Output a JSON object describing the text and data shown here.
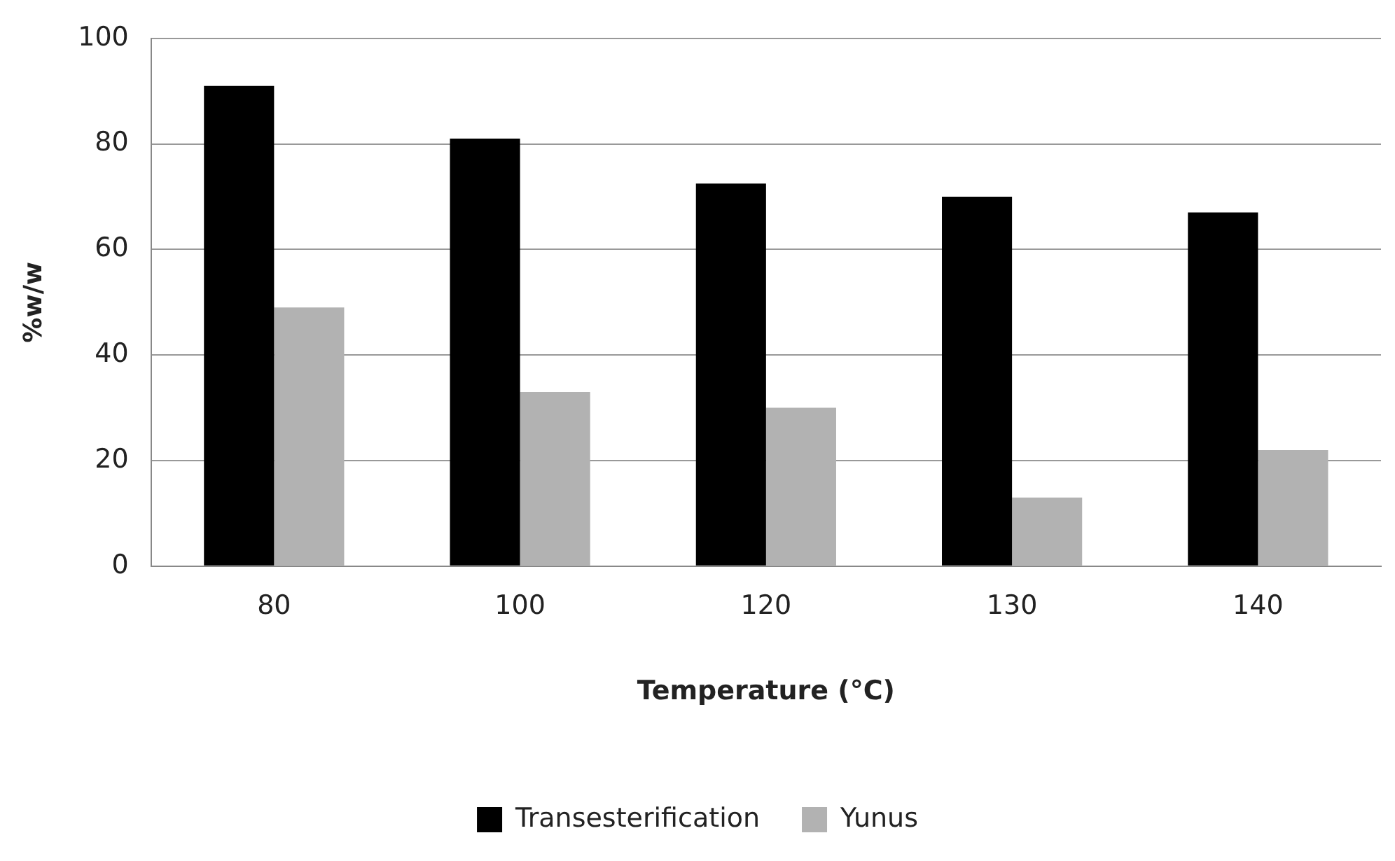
{
  "chart_data": {
    "type": "bar",
    "xlabel": "Temperature (°C)",
    "ylabel": "%w/w",
    "categories": [
      "80",
      "100",
      "120",
      "130",
      "140"
    ],
    "series": [
      {
        "name": "Transesterification",
        "color": "#000000",
        "values": [
          91,
          81,
          72.5,
          70,
          67
        ]
      },
      {
        "name": "Yunus",
        "color": "#b2b2b2",
        "values": [
          49,
          33,
          30,
          13,
          22
        ]
      }
    ],
    "ylim": [
      0,
      100
    ],
    "yticks": [
      0,
      20,
      40,
      60,
      80,
      100
    ],
    "grid": "y",
    "legend": "bottom"
  }
}
